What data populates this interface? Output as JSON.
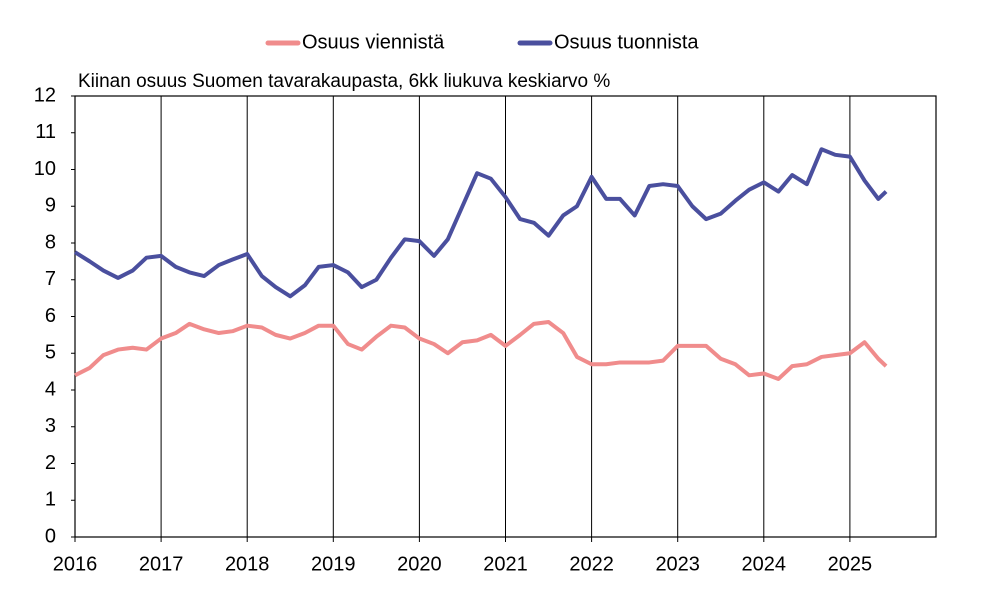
{
  "chart_data": {
    "type": "line",
    "title": "Kiinan osuus Suomen tavarakaupasta, 6kk liukuva keskiarvo %",
    "x": [
      2016.0,
      2016.17,
      2016.33,
      2016.5,
      2016.67,
      2016.83,
      2017.0,
      2017.17,
      2017.33,
      2017.5,
      2017.67,
      2017.83,
      2018.0,
      2018.17,
      2018.33,
      2018.5,
      2018.67,
      2018.83,
      2019.0,
      2019.17,
      2019.33,
      2019.5,
      2019.67,
      2019.83,
      2020.0,
      2020.17,
      2020.33,
      2020.5,
      2020.67,
      2020.83,
      2021.0,
      2021.17,
      2021.33,
      2021.5,
      2021.67,
      2021.83,
      2022.0,
      2022.17,
      2022.33,
      2022.5,
      2022.67,
      2022.83,
      2023.0,
      2023.17,
      2023.33,
      2023.5,
      2023.67,
      2023.83,
      2024.0,
      2024.17,
      2024.33,
      2024.5,
      2024.67,
      2024.83,
      2025.0,
      2025.17,
      2025.33,
      2025.42
    ],
    "series": [
      {
        "name": "Osuus viennistä",
        "color": "#f08c8c",
        "values": [
          4.4,
          4.6,
          4.95,
          5.1,
          5.15,
          5.1,
          5.4,
          5.55,
          5.8,
          5.65,
          5.55,
          5.6,
          5.75,
          5.7,
          5.5,
          5.4,
          5.55,
          5.75,
          5.75,
          5.25,
          5.1,
          5.45,
          5.75,
          5.7,
          5.4,
          5.25,
          5.0,
          5.3,
          5.35,
          5.5,
          5.2,
          5.5,
          5.8,
          5.85,
          5.55,
          4.9,
          4.7,
          4.7,
          4.75,
          4.75,
          4.75,
          4.8,
          5.2,
          5.2,
          5.2,
          4.85,
          4.7,
          4.4,
          4.45,
          4.3,
          4.65,
          4.7,
          4.9,
          4.95,
          5.0,
          5.3,
          4.85,
          4.65
        ]
      },
      {
        "name": "Osuus tuonnista",
        "color": "#4a4f9e",
        "values": [
          7.75,
          7.5,
          7.25,
          7.05,
          7.25,
          7.6,
          7.65,
          7.35,
          7.2,
          7.1,
          7.4,
          7.55,
          7.7,
          7.1,
          6.8,
          6.55,
          6.85,
          7.35,
          7.4,
          7.2,
          6.8,
          7.0,
          7.6,
          8.1,
          8.05,
          7.65,
          8.1,
          9.0,
          9.9,
          9.75,
          9.25,
          8.65,
          8.55,
          8.2,
          8.75,
          9.0,
          9.8,
          9.2,
          9.2,
          8.75,
          9.55,
          9.6,
          9.55,
          9.0,
          8.65,
          8.8,
          9.15,
          9.45,
          9.65,
          9.4,
          9.85,
          9.6,
          10.55,
          10.4,
          10.35,
          9.7,
          9.2,
          9.4
        ]
      }
    ],
    "xlim": [
      2016,
      2026
    ],
    "xticks": [
      2016,
      2017,
      2018,
      2019,
      2020,
      2021,
      2022,
      2023,
      2024,
      2025
    ],
    "ylim": [
      0,
      12
    ],
    "yticks": [
      0,
      1,
      2,
      3,
      4,
      5,
      6,
      7,
      8,
      9,
      10,
      11,
      12
    ],
    "grid": "x",
    "legend": "top"
  }
}
